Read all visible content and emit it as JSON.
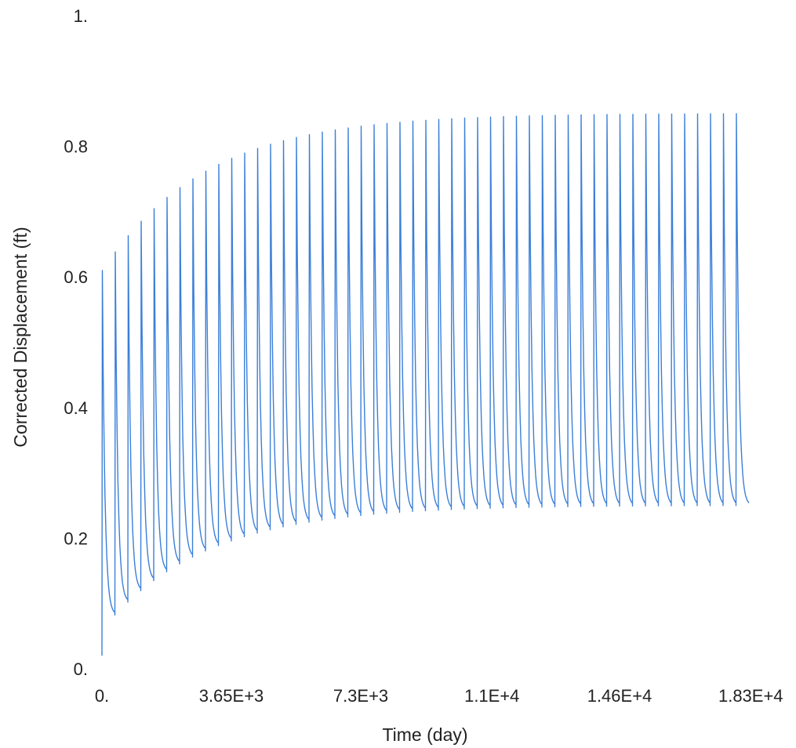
{
  "chart_data": {
    "type": "line",
    "title": "",
    "xlabel": "Time (day)",
    "ylabel": "Corrected Displacement (ft)",
    "xlim": [
      0,
      18250
    ],
    "ylim": [
      0,
      1
    ],
    "x_ticks": [
      {
        "value": 0,
        "label": "0."
      },
      {
        "value": 3650,
        "label": "3.65E+3"
      },
      {
        "value": 7300,
        "label": "7.3E+3"
      },
      {
        "value": 11000,
        "label": "1.1E+4"
      },
      {
        "value": 14600,
        "label": "1.46E+4"
      },
      {
        "value": 18300,
        "label": "1.83E+4"
      }
    ],
    "y_ticks": [
      {
        "value": 0,
        "label": "0."
      },
      {
        "value": 0.2,
        "label": "0.2"
      },
      {
        "value": 0.4,
        "label": "0.4"
      },
      {
        "value": 0.6,
        "label": "0.6"
      },
      {
        "value": 0.8,
        "label": "0.8"
      },
      {
        "value": 1,
        "label": "1."
      }
    ],
    "grid": false,
    "line_color": "#3b7fd8",
    "series": [
      {
        "cycle_period_days": 365,
        "cycles": 50,
        "peak_start": 0.61,
        "peak_end": 0.85,
        "trough_start": 0.06,
        "trough_end": 0.25,
        "approx_peaks": [
          {
            "x": 0,
            "y": 0.61
          },
          {
            "x": 365,
            "y": 0.65
          },
          {
            "x": 1095,
            "y": 0.7
          },
          {
            "x": 3650,
            "y": 0.78
          },
          {
            "x": 7300,
            "y": 0.8
          },
          {
            "x": 11000,
            "y": 0.83
          },
          {
            "x": 14600,
            "y": 0.84
          },
          {
            "x": 18250,
            "y": 0.85
          }
        ],
        "approx_troughs": [
          {
            "x": 365,
            "y": 0.06
          },
          {
            "x": 1095,
            "y": 0.1
          },
          {
            "x": 3650,
            "y": 0.17
          },
          {
            "x": 7300,
            "y": 0.2
          },
          {
            "x": 11000,
            "y": 0.23
          },
          {
            "x": 14600,
            "y": 0.24
          },
          {
            "x": 18250,
            "y": 0.25
          }
        ]
      }
    ]
  }
}
